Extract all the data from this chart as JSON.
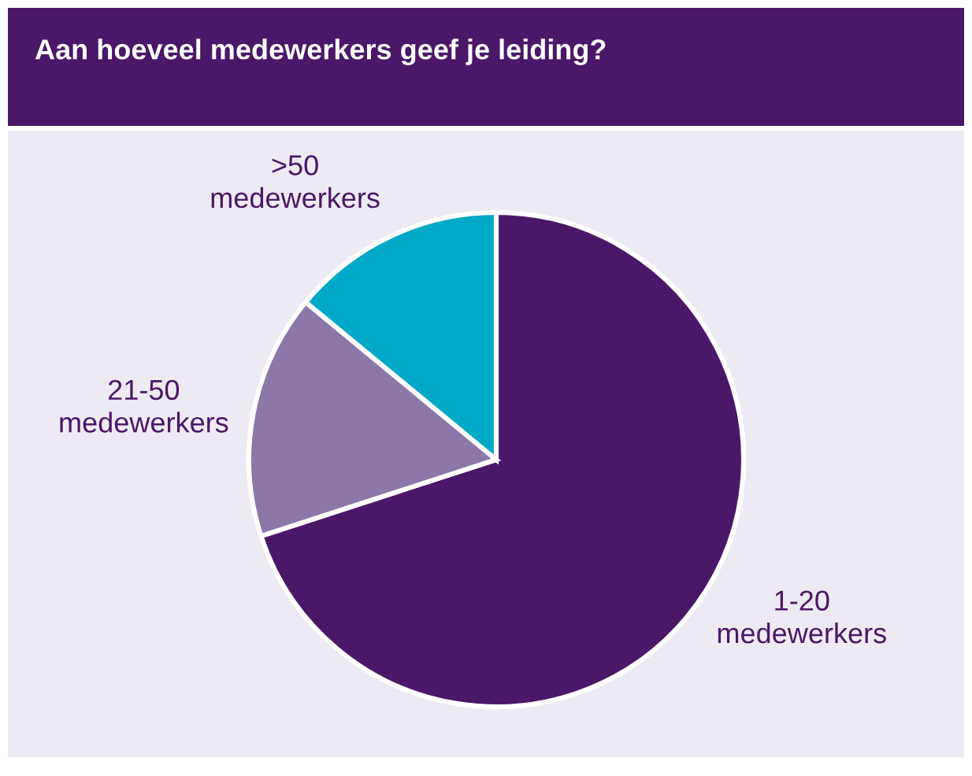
{
  "chart_data": {
    "type": "pie",
    "title": "Aan hoeveel medewerkers geef je leiding?",
    "categories": [
      "1-20\nmedewerkers",
      "21-50\nmedewerkers",
      ">50\nmedewerkers"
    ],
    "values": [
      70,
      16,
      14
    ],
    "colors": [
      "#4b1768",
      "#8b77a8",
      "#00aac6"
    ]
  }
}
